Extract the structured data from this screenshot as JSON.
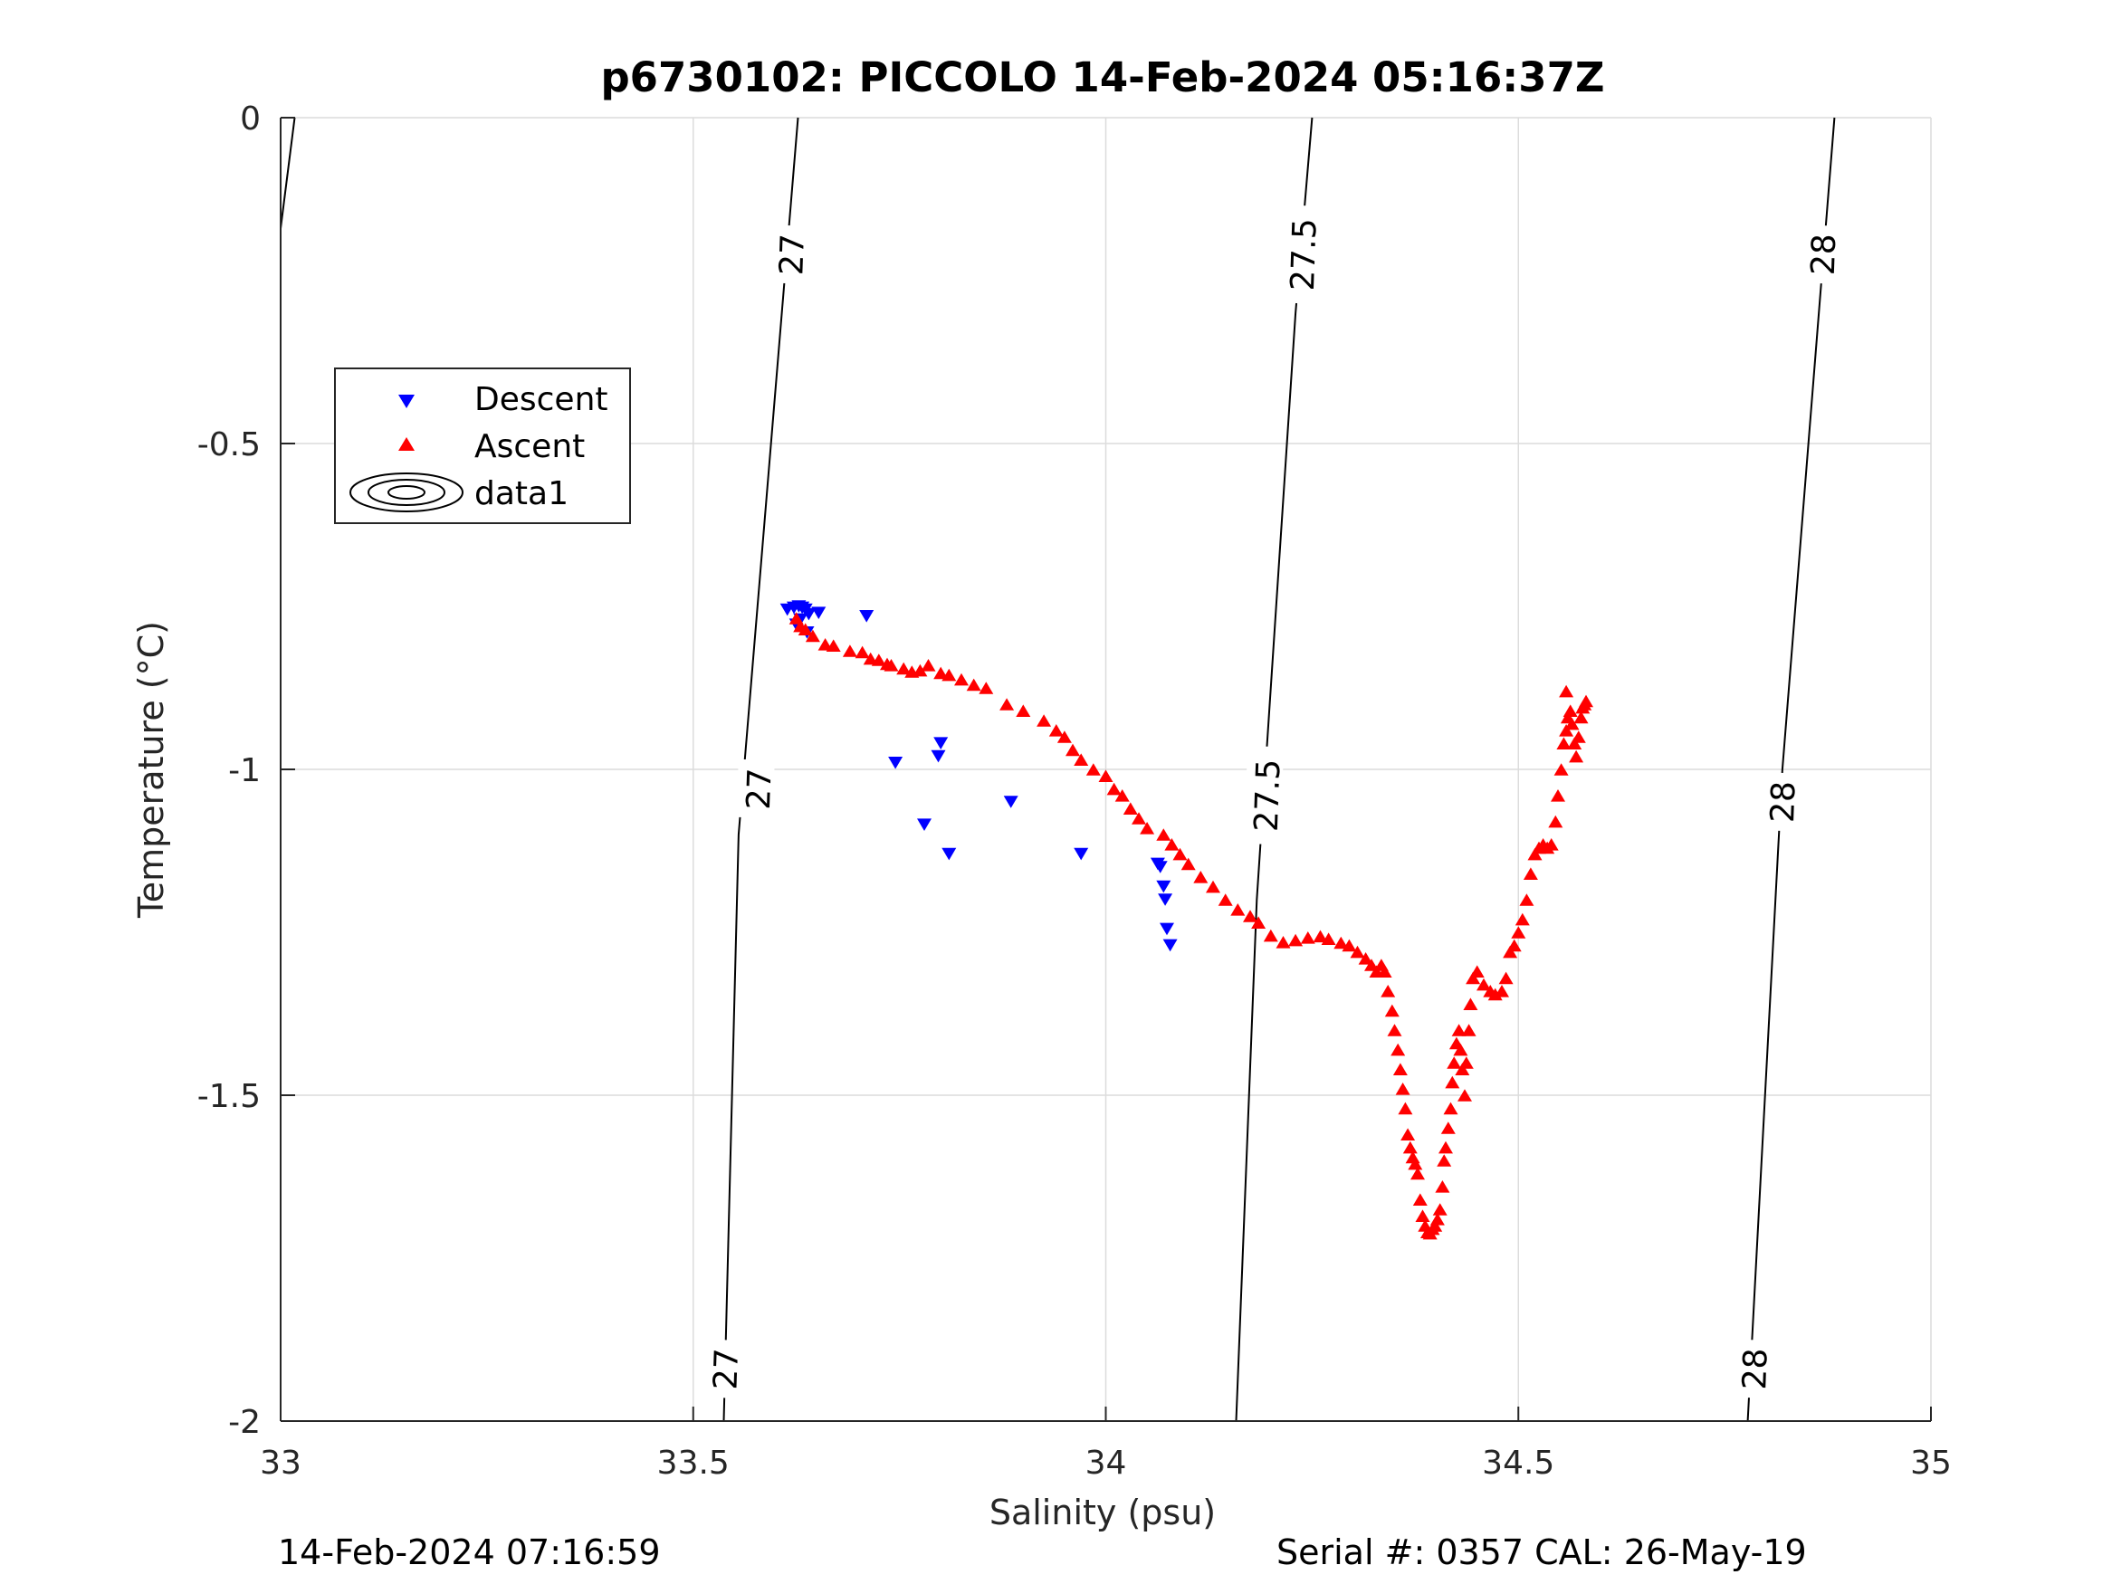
{
  "chart_data": {
    "type": "scatter",
    "title": "p6730102: PICCOLO 14-Feb-2024 05:16:37Z",
    "xlabel": "Salinity (psu)",
    "ylabel": "Temperature (°C)",
    "xlim": [
      33,
      35
    ],
    "ylim": [
      -2,
      0
    ],
    "xticks": [
      33,
      33.5,
      34,
      34.5,
      35
    ],
    "xtick_labels": [
      "33",
      "33.5",
      "34",
      "34.5",
      "35"
    ],
    "yticks": [
      -2,
      -1.5,
      -1,
      -0.5,
      0
    ],
    "ytick_labels": [
      "-2",
      "-1.5",
      "-1",
      "-0.5",
      "0"
    ],
    "grid": true,
    "legend_position": "upper-left",
    "legend": [
      "Descent",
      "Ascent",
      "data1"
    ],
    "colors": {
      "descent": "#0000ff",
      "ascent": "#ff0000",
      "contour": "#000000"
    },
    "contours": [
      {
        "level": "27",
        "points": [
          [
            33.627,
            0
          ],
          [
            33.555,
            -1.1
          ],
          [
            33.537,
            -2
          ]
        ],
        "labels": [
          {
            "text": "27",
            "x": 33.62,
            "y": -0.21
          },
          {
            "text": "27",
            "x": 33.58,
            "y": -1.03
          },
          {
            "text": "27",
            "x": 33.54,
            "y": -1.92
          }
        ]
      },
      {
        "level": "27.5",
        "points": [
          [
            34.25,
            0
          ],
          [
            34.23,
            -0.3
          ],
          [
            34.183,
            -1.2
          ],
          [
            34.158,
            -2
          ]
        ],
        "labels": [
          {
            "text": "27.5",
            "x": 34.24,
            "y": -0.21
          },
          {
            "text": "27.5",
            "x": 34.196,
            "y": -1.04
          },
          {
            "text": "27.5",
            "x": 34.24,
            "y": -0.21
          }
        ]
      },
      {
        "level": "28",
        "points": [
          [
            34.883,
            0
          ],
          [
            34.82,
            -1.0
          ],
          [
            34.778,
            -2
          ]
        ],
        "labels": [
          {
            "text": "28",
            "x": 34.87,
            "y": -0.21
          },
          {
            "text": "28",
            "x": 34.821,
            "y": -1.05
          },
          {
            "text": "28",
            "x": 34.787,
            "y": -1.92
          }
        ]
      },
      {
        "level": "",
        "points": [
          [
            33.017,
            0
          ],
          [
            33.0,
            -0.17
          ]
        ],
        "labels": []
      }
    ],
    "series": [
      {
        "name": "Descent",
        "marker": "triangle-down",
        "points": [
          [
            33.614,
            -0.755
          ],
          [
            33.622,
            -0.752
          ],
          [
            33.628,
            -0.75
          ],
          [
            33.632,
            -0.752
          ],
          [
            33.636,
            -0.755
          ],
          [
            33.64,
            -0.762
          ],
          [
            33.63,
            -0.77
          ],
          [
            33.625,
            -0.778
          ],
          [
            33.638,
            -0.79
          ],
          [
            33.652,
            -0.76
          ],
          [
            33.71,
            -0.765
          ],
          [
            33.745,
            -0.99
          ],
          [
            33.8,
            -0.96
          ],
          [
            33.797,
            -0.98
          ],
          [
            33.78,
            -1.085
          ],
          [
            33.81,
            -1.13
          ],
          [
            33.885,
            -1.05
          ],
          [
            33.97,
            -1.13
          ],
          [
            34.063,
            -1.145
          ],
          [
            34.066,
            -1.15
          ],
          [
            34.07,
            -1.18
          ],
          [
            34.072,
            -1.2
          ],
          [
            34.074,
            -1.245
          ],
          [
            34.078,
            -1.27
          ]
        ]
      },
      {
        "name": "Ascent",
        "marker": "triangle-up",
        "points": [
          [
            33.625,
            -0.768
          ],
          [
            33.63,
            -0.78
          ],
          [
            33.636,
            -0.785
          ],
          [
            33.645,
            -0.795
          ],
          [
            33.66,
            -0.808
          ],
          [
            33.67,
            -0.81
          ],
          [
            33.69,
            -0.818
          ],
          [
            33.705,
            -0.82
          ],
          [
            33.715,
            -0.83
          ],
          [
            33.725,
            -0.832
          ],
          [
            33.735,
            -0.838
          ],
          [
            33.74,
            -0.84
          ],
          [
            33.755,
            -0.845
          ],
          [
            33.765,
            -0.85
          ],
          [
            33.775,
            -0.848
          ],
          [
            33.785,
            -0.84
          ],
          [
            33.8,
            -0.852
          ],
          [
            33.81,
            -0.855
          ],
          [
            33.825,
            -0.862
          ],
          [
            33.84,
            -0.87
          ],
          [
            33.855,
            -0.875
          ],
          [
            33.88,
            -0.9
          ],
          [
            33.9,
            -0.91
          ],
          [
            33.925,
            -0.925
          ],
          [
            33.94,
            -0.94
          ],
          [
            33.95,
            -0.95
          ],
          [
            33.96,
            -0.97
          ],
          [
            33.97,
            -0.985
          ],
          [
            33.985,
            -1.0
          ],
          [
            34.0,
            -1.01
          ],
          [
            34.01,
            -1.03
          ],
          [
            34.02,
            -1.04
          ],
          [
            34.03,
            -1.06
          ],
          [
            34.04,
            -1.075
          ],
          [
            34.05,
            -1.09
          ],
          [
            34.07,
            -1.1
          ],
          [
            34.08,
            -1.115
          ],
          [
            34.09,
            -1.13
          ],
          [
            34.1,
            -1.145
          ],
          [
            34.115,
            -1.165
          ],
          [
            34.13,
            -1.18
          ],
          [
            34.145,
            -1.2
          ],
          [
            34.16,
            -1.215
          ],
          [
            34.175,
            -1.225
          ],
          [
            34.185,
            -1.235
          ],
          [
            34.2,
            -1.255
          ],
          [
            34.215,
            -1.265
          ],
          [
            34.23,
            -1.262
          ],
          [
            34.245,
            -1.258
          ],
          [
            34.26,
            -1.256
          ],
          [
            34.27,
            -1.26
          ],
          [
            34.285,
            -1.266
          ],
          [
            34.295,
            -1.27
          ],
          [
            34.305,
            -1.28
          ],
          [
            34.315,
            -1.29
          ],
          [
            34.322,
            -1.3
          ],
          [
            34.328,
            -1.31
          ],
          [
            34.334,
            -1.3
          ],
          [
            34.338,
            -1.31
          ],
          [
            34.342,
            -1.34
          ],
          [
            34.347,
            -1.37
          ],
          [
            34.35,
            -1.4
          ],
          [
            34.354,
            -1.43
          ],
          [
            34.357,
            -1.46
          ],
          [
            34.36,
            -1.49
          ],
          [
            34.363,
            -1.52
          ],
          [
            34.366,
            -1.56
          ],
          [
            34.369,
            -1.58
          ],
          [
            34.372,
            -1.595
          ],
          [
            34.375,
            -1.605
          ],
          [
            34.378,
            -1.62
          ],
          [
            34.381,
            -1.66
          ],
          [
            34.384,
            -1.685
          ],
          [
            34.387,
            -1.7
          ],
          [
            34.39,
            -1.71
          ],
          [
            34.393,
            -1.712
          ],
          [
            34.396,
            -1.705
          ],
          [
            34.399,
            -1.7
          ],
          [
            34.402,
            -1.69
          ],
          [
            34.405,
            -1.675
          ],
          [
            34.408,
            -1.64
          ],
          [
            34.41,
            -1.6
          ],
          [
            34.412,
            -1.58
          ],
          [
            34.415,
            -1.55
          ],
          [
            34.418,
            -1.52
          ],
          [
            34.42,
            -1.48
          ],
          [
            34.422,
            -1.45
          ],
          [
            34.425,
            -1.42
          ],
          [
            34.428,
            -1.4
          ],
          [
            34.43,
            -1.43
          ],
          [
            34.432,
            -1.46
          ],
          [
            34.435,
            -1.5
          ],
          [
            34.437,
            -1.45
          ],
          [
            34.44,
            -1.4
          ],
          [
            34.442,
            -1.36
          ],
          [
            34.445,
            -1.32
          ],
          [
            34.45,
            -1.31
          ],
          [
            34.458,
            -1.33
          ],
          [
            34.466,
            -1.34
          ],
          [
            34.472,
            -1.345
          ],
          [
            34.48,
            -1.34
          ],
          [
            34.485,
            -1.32
          ],
          [
            34.49,
            -1.28
          ],
          [
            34.495,
            -1.27
          ],
          [
            34.5,
            -1.25
          ],
          [
            34.505,
            -1.23
          ],
          [
            34.51,
            -1.2
          ],
          [
            34.515,
            -1.16
          ],
          [
            34.52,
            -1.13
          ],
          [
            34.525,
            -1.12
          ],
          [
            34.53,
            -1.115
          ],
          [
            34.535,
            -1.12
          ],
          [
            34.54,
            -1.115
          ],
          [
            34.545,
            -1.08
          ],
          [
            34.548,
            -1.04
          ],
          [
            34.552,
            -1.0
          ],
          [
            34.555,
            -0.96
          ],
          [
            34.558,
            -0.94
          ],
          [
            34.56,
            -0.92
          ],
          [
            34.563,
            -0.91
          ],
          [
            34.565,
            -0.93
          ],
          [
            34.568,
            -0.96
          ],
          [
            34.57,
            -0.98
          ],
          [
            34.573,
            -0.95
          ],
          [
            34.576,
            -0.92
          ],
          [
            34.578,
            -0.905
          ],
          [
            34.58,
            -0.9
          ],
          [
            34.582,
            -0.895
          ],
          [
            34.558,
            -0.88
          ]
        ]
      }
    ]
  },
  "footer": {
    "timestamp": "14-Feb-2024 07:16:59",
    "serial": "Serial #: 0357  CAL: 26-May-19"
  }
}
